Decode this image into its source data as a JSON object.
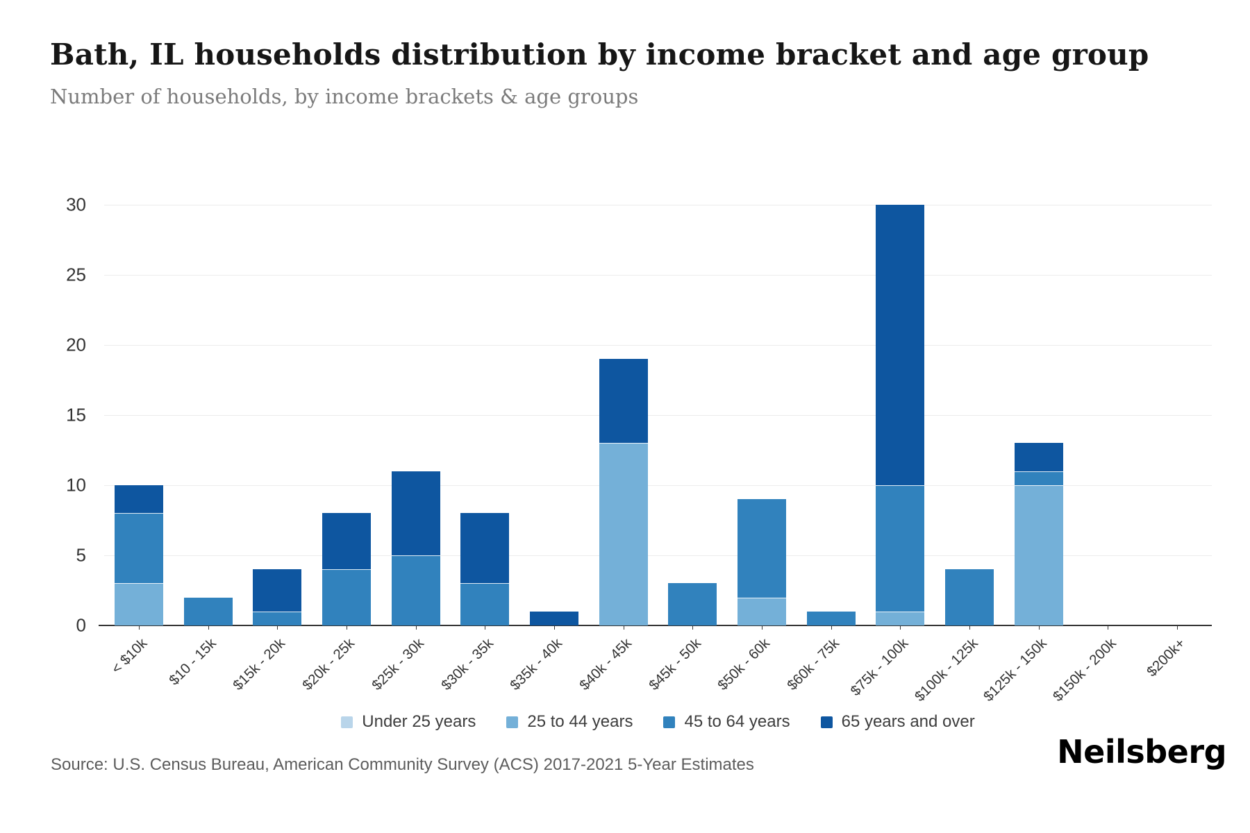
{
  "header": {
    "title": "Bath, IL households distribution by income bracket and age group",
    "subtitle": "Number of households, by income brackets & age groups"
  },
  "chart_data": {
    "type": "bar",
    "stacked": true,
    "title": "Bath, IL households distribution by income bracket and age group",
    "xlabel": "",
    "ylabel": "Number of households",
    "ylim": [
      0,
      30
    ],
    "yticks": [
      0,
      5,
      10,
      15,
      20,
      25,
      30
    ],
    "grid": true,
    "legend_position": "bottom",
    "categories": [
      "< $10k",
      "$10 - 15k",
      "$15k - 20k",
      "$20k - 25k",
      "$25k - 30k",
      "$30k - 35k",
      "$35k - 40k",
      "$40k - 45k",
      "$45k - 50k",
      "$50k - 60k",
      "$60k - 75k",
      "$75k - 100k",
      "$100k - 125k",
      "$125k - 150k",
      "$150k - 200k",
      "$200k+"
    ],
    "series": [
      {
        "name": "Under 25 years",
        "color": "#b9d5ea",
        "values": [
          0,
          0,
          0,
          0,
          0,
          0,
          0,
          0,
          0,
          0,
          0,
          0,
          0,
          0,
          0,
          0
        ]
      },
      {
        "name": "25 to 44 years",
        "color": "#74b0d8",
        "values": [
          3,
          0,
          0,
          0,
          0,
          0,
          0,
          13,
          0,
          2,
          0,
          1,
          0,
          10,
          0,
          0
        ]
      },
      {
        "name": "45 to 64 years",
        "color": "#3182bd",
        "values": [
          5,
          2,
          1,
          4,
          5,
          3,
          0,
          0,
          3,
          7,
          1,
          9,
          4,
          1,
          0,
          0
        ]
      },
      {
        "name": "65 years and over",
        "color": "#0e56a0",
        "values": [
          2,
          0,
          3,
          4,
          6,
          5,
          1,
          6,
          0,
          0,
          0,
          20,
          0,
          2,
          0,
          0
        ]
      }
    ],
    "totals": [
      10,
      2,
      4,
      8,
      11,
      8,
      1,
      19,
      3,
      9,
      1,
      30,
      4,
      13,
      0,
      0
    ],
    "colors": {
      "gridline": "#ececec",
      "axis": "#333333",
      "tick_label": "#333333"
    }
  },
  "footer": {
    "source": "Source: U.S. Census Bureau, American Community Survey (ACS) 2017-2021 5-Year Estimates",
    "logo": "Neilsberg"
  }
}
